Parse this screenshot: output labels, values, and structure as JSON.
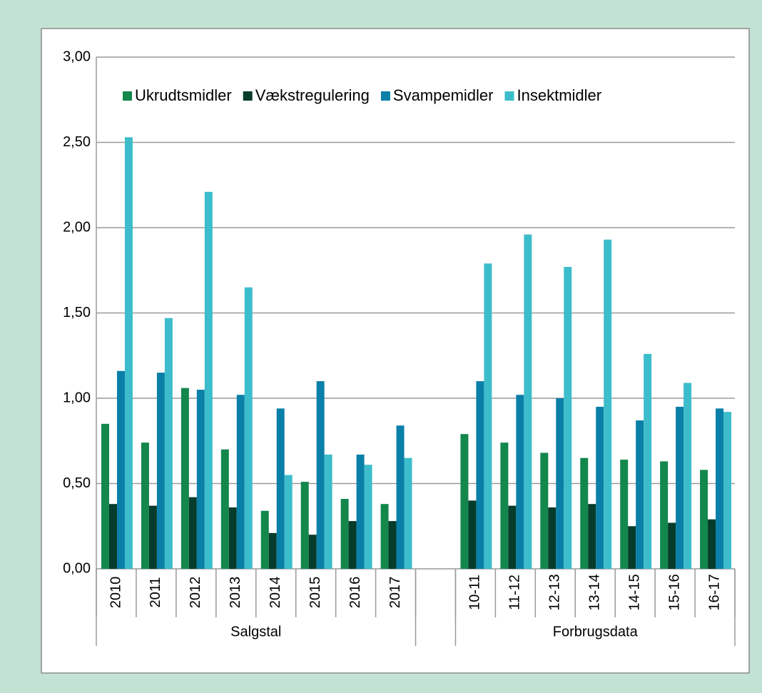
{
  "chart_data": {
    "type": "bar",
    "categories": [
      "2010",
      "2011",
      "2012",
      "2013",
      "2014",
      "2015",
      "2016",
      "2017",
      null,
      "10-11",
      "11-12",
      "12-13",
      "13-14",
      "14-15",
      "15-16",
      "16-17"
    ],
    "groups": [
      {
        "label": "Salgstal",
        "count": 8
      },
      {
        "label": null,
        "count": 1
      },
      {
        "label": "Forbrugsdata",
        "count": 7
      }
    ],
    "series": [
      {
        "name": "Ukrudtsmidler",
        "color": "#13874c",
        "values": [
          0.85,
          0.74,
          1.06,
          0.7,
          0.34,
          0.51,
          0.41,
          0.38,
          null,
          0.79,
          0.74,
          0.68,
          0.65,
          0.64,
          0.63,
          0.58
        ]
      },
      {
        "name": "Vækstregulering",
        "color": "#063c2b",
        "values": [
          0.38,
          0.37,
          0.42,
          0.36,
          0.21,
          0.2,
          0.28,
          0.28,
          null,
          0.4,
          0.37,
          0.36,
          0.38,
          0.25,
          0.27,
          0.29
        ]
      },
      {
        "name": "Svampemidler",
        "color": "#0a7fa8",
        "values": [
          1.16,
          1.15,
          1.05,
          1.02,
          0.94,
          1.1,
          0.67,
          0.84,
          null,
          1.1,
          1.02,
          1.0,
          0.95,
          0.87,
          0.95,
          0.94
        ]
      },
      {
        "name": "Insektmidler",
        "color": "#3dbdcb",
        "values": [
          2.53,
          1.47,
          2.21,
          1.65,
          0.55,
          0.67,
          0.61,
          0.65,
          null,
          1.79,
          1.96,
          1.77,
          1.93,
          1.26,
          1.09,
          0.92
        ]
      }
    ],
    "ylim": [
      0,
      3
    ],
    "yticks": [
      {
        "value": 0,
        "label": "0,00"
      },
      {
        "value": 0.5,
        "label": "0,50"
      },
      {
        "value": 1,
        "label": "1,00"
      },
      {
        "value": 1.5,
        "label": "1,50"
      },
      {
        "value": 2,
        "label": "2,00"
      },
      {
        "value": 2.5,
        "label": "2,50"
      },
      {
        "value": 3,
        "label": "3,00"
      }
    ],
    "grid": true,
    "legend": "top"
  }
}
